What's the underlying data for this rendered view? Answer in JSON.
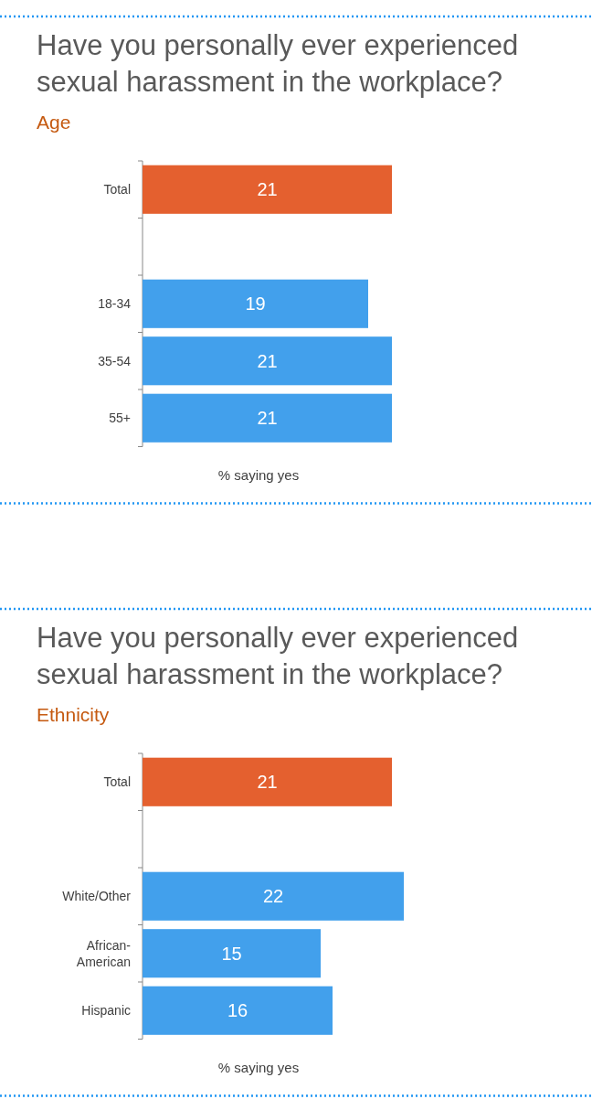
{
  "chart_data": [
    {
      "type": "bar",
      "orientation": "horizontal",
      "title": "Have you personally ever experienced sexual harassment in the workplace?",
      "subtitle": "Age",
      "xlabel": "% saying yes",
      "categories": [
        "Total",
        null,
        "18-34",
        "35-54",
        "55+"
      ],
      "values": [
        21,
        null,
        19,
        21,
        21
      ],
      "colors": [
        "#e4602f",
        null,
        "#42a0ec",
        "#42a0ec",
        "#42a0ec"
      ],
      "data_labels": true
    },
    {
      "type": "bar",
      "orientation": "horizontal",
      "title": "Have you personally ever experienced sexual harassment in the workplace?",
      "subtitle": "Ethnicity",
      "xlabel": "% saying yes",
      "categories": [
        "Total",
        null,
        "White/Other",
        "African-American",
        "Hispanic"
      ],
      "values": [
        21,
        null,
        22,
        15,
        16
      ],
      "colors": [
        "#e4602f",
        null,
        "#42a0ec",
        "#42a0ec",
        "#42a0ec"
      ],
      "data_labels": true
    }
  ]
}
